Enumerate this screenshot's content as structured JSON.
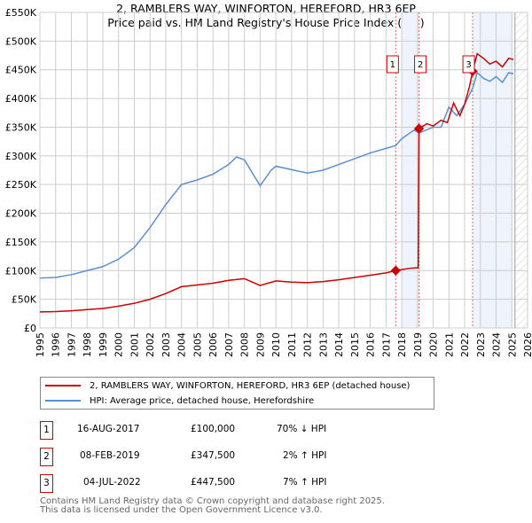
{
  "title": "2, RAMBLERS WAY, WINFORTON, HEREFORD, HR3 6EP",
  "subtitle": "Price paid vs. HM Land Registry's House Price Index (HPI)",
  "chart_data": {
    "type": "line",
    "xlim": [
      1995,
      2026
    ],
    "ylim": [
      0,
      550000
    ],
    "x_ticks": [
      "1995",
      "1996",
      "1997",
      "1998",
      "1999",
      "2000",
      "2001",
      "2002",
      "2003",
      "2004",
      "2005",
      "2006",
      "2007",
      "2008",
      "2009",
      "2010",
      "2011",
      "2012",
      "2013",
      "2014",
      "2015",
      "2016",
      "2017",
      "2018",
      "2019",
      "2020",
      "2021",
      "2022",
      "2023",
      "2024",
      "2025",
      "2026"
    ],
    "y_ticks": [
      {
        "v": 0,
        "l": "£0"
      },
      {
        "v": 50000,
        "l": "£50K"
      },
      {
        "v": 100000,
        "l": "£100K"
      },
      {
        "v": 150000,
        "l": "£150K"
      },
      {
        "v": 200000,
        "l": "£200K"
      },
      {
        "v": 250000,
        "l": "£250K"
      },
      {
        "v": 300000,
        "l": "£300K"
      },
      {
        "v": 350000,
        "l": "£350K"
      },
      {
        "v": 400000,
        "l": "£400K"
      },
      {
        "v": 450000,
        "l": "£450K"
      },
      {
        "v": 500000,
        "l": "£500K"
      },
      {
        "v": 550000,
        "l": "£550K"
      }
    ],
    "shaded": [
      [
        2018,
        2019.1
      ],
      [
        2022.5,
        2025
      ]
    ],
    "hatched_from": 2025.2,
    "series": [
      {
        "name": "2, RAMBLERS WAY, WINFORTON, HEREFORD, HR3 6EP (detached house)",
        "color": "#cc0000",
        "points": [
          [
            1995,
            28000
          ],
          [
            1996,
            28500
          ],
          [
            1997,
            30000
          ],
          [
            1998,
            32000
          ],
          [
            1999,
            34000
          ],
          [
            2000,
            38000
          ],
          [
            2001,
            43000
          ],
          [
            2002,
            50000
          ],
          [
            2003,
            60000
          ],
          [
            2004,
            72000
          ],
          [
            2005,
            75000
          ],
          [
            2006,
            78000
          ],
          [
            2007,
            83000
          ],
          [
            2008,
            86000
          ],
          [
            2009,
            74000
          ],
          [
            2010,
            82000
          ],
          [
            2011,
            80000
          ],
          [
            2012,
            79000
          ],
          [
            2013,
            81000
          ],
          [
            2014,
            84000
          ],
          [
            2015,
            88000
          ],
          [
            2016,
            92000
          ],
          [
            2017,
            96000
          ],
          [
            2017.62,
            100000
          ],
          [
            2018.5,
            104000
          ],
          [
            2019.05,
            105000
          ],
          [
            2019.1,
            347500
          ],
          [
            2019.6,
            356000
          ],
          [
            2020,
            352000
          ],
          [
            2020.5,
            362000
          ],
          [
            2020.9,
            358000
          ],
          [
            2021.3,
            392000
          ],
          [
            2021.7,
            370000
          ],
          [
            2022,
            390000
          ],
          [
            2022.3,
            420000
          ],
          [
            2022.51,
            447500
          ],
          [
            2022.8,
            478000
          ],
          [
            2023.2,
            470000
          ],
          [
            2023.6,
            460000
          ],
          [
            2024,
            465000
          ],
          [
            2024.4,
            455000
          ],
          [
            2024.8,
            470000
          ],
          [
            2025.1,
            468000
          ]
        ]
      },
      {
        "name": "HPI: Average price, detached house, Herefordshire",
        "color": "#5b8fd4",
        "points": [
          [
            1995,
            87000
          ],
          [
            1996,
            88000
          ],
          [
            1997,
            93000
          ],
          [
            1998,
            100000
          ],
          [
            1999,
            107000
          ],
          [
            2000,
            120000
          ],
          [
            2001,
            140000
          ],
          [
            2002,
            175000
          ],
          [
            2003,
            215000
          ],
          [
            2004,
            250000
          ],
          [
            2005,
            258000
          ],
          [
            2006,
            268000
          ],
          [
            2007,
            285000
          ],
          [
            2007.5,
            298000
          ],
          [
            2008,
            293000
          ],
          [
            2009,
            248000
          ],
          [
            2009.7,
            275000
          ],
          [
            2010,
            282000
          ],
          [
            2011,
            276000
          ],
          [
            2012,
            270000
          ],
          [
            2013,
            275000
          ],
          [
            2014,
            285000
          ],
          [
            2015,
            295000
          ],
          [
            2016,
            305000
          ],
          [
            2017,
            313000
          ],
          [
            2017.62,
            318000
          ],
          [
            2018,
            330000
          ],
          [
            2018.8,
            345000
          ],
          [
            2019.1,
            340000
          ],
          [
            2020,
            350000
          ],
          [
            2020.5,
            350000
          ],
          [
            2021,
            385000
          ],
          [
            2021.5,
            370000
          ],
          [
            2022,
            390000
          ],
          [
            2022.51,
            418000
          ],
          [
            2022.8,
            445000
          ],
          [
            2023.2,
            435000
          ],
          [
            2023.6,
            430000
          ],
          [
            2024,
            438000
          ],
          [
            2024.4,
            428000
          ],
          [
            2024.8,
            445000
          ],
          [
            2025.1,
            443000
          ]
        ]
      }
    ],
    "sales": [
      {
        "n": "1",
        "year": 2017.62,
        "value": 100000
      },
      {
        "n": "2",
        "year": 2019.1,
        "value": 347500
      },
      {
        "n": "3",
        "year": 2022.51,
        "value": 447500
      }
    ]
  },
  "legend": {
    "red": "2, RAMBLERS WAY, WINFORTON, HEREFORD, HR3 6EP (detached house)",
    "blue": "HPI: Average price, detached house, Herefordshire"
  },
  "transactions": [
    {
      "n": "1",
      "date": "16-AUG-2017",
      "price": "£100,000",
      "hpi": "70% ↓ HPI"
    },
    {
      "n": "2",
      "date": "08-FEB-2019",
      "price": "£347,500",
      "hpi": "2% ↑ HPI"
    },
    {
      "n": "3",
      "date": "04-JUL-2022",
      "price": "£447,500",
      "hpi": "7% ↑ HPI"
    }
  ],
  "footer": [
    "Contains HM Land Registry data © Crown copyright and database right 2025.",
    "This data is licensed under the Open Government Licence v3.0."
  ]
}
